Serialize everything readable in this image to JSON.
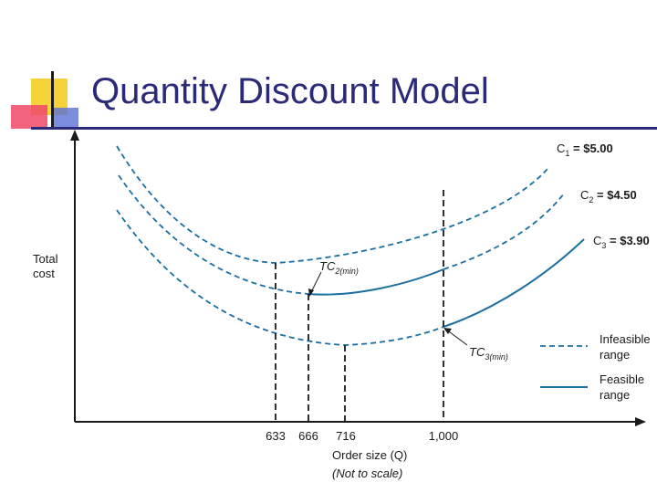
{
  "slide": {
    "title": "Quantity Discount Model"
  },
  "chart_data": {
    "type": "line",
    "title": "",
    "ylabel_lines": [
      "Total",
      "cost"
    ],
    "xlabel": "Order size (Q)",
    "xnote": "(Not to scale)",
    "x_ticks": [
      "633",
      "666",
      "716",
      "1,000"
    ],
    "series": [
      {
        "name": "C1 = $5.00",
        "label_main": "C",
        "label_sub": "1",
        "label_rest": " = $5.00",
        "segments": [
          {
            "range": "infeasible",
            "x_from": 0,
            "x_to": 1
          }
        ],
        "min_q": 633
      },
      {
        "name": "C2 = $4.50",
        "label_main": "C",
        "label_sub": "2",
        "label_rest": " = $4.50",
        "segments": [
          {
            "range": "infeasible",
            "x_from": 0,
            "x_to": 666
          },
          {
            "range": "feasible",
            "x_from": 666,
            "x_to": 1000
          },
          {
            "range": "infeasible",
            "x_from": 1000,
            "x_to": 1
          }
        ],
        "min_q": 666
      },
      {
        "name": "C3 = $3.90",
        "label_main": "C",
        "label_sub": "3",
        "label_rest": " = $3.90",
        "segments": [
          {
            "range": "infeasible",
            "x_from": 0,
            "x_to": 1000
          },
          {
            "range": "feasible",
            "x_from": 1000,
            "x_to": 1
          }
        ],
        "min_q": 716
      }
    ],
    "annotations": [
      {
        "main": "TC",
        "sub": "2(min)",
        "at_q": 666
      },
      {
        "main": "TC",
        "sub": "3(min)",
        "at_q": 1000
      }
    ],
    "legend": {
      "placement": "right",
      "items": [
        {
          "style": "dashed",
          "label_lines": [
            "Infeasible",
            "range"
          ]
        },
        {
          "style": "solid",
          "label_lines": [
            "Feasible",
            "range"
          ]
        }
      ]
    },
    "colors": {
      "curve": "#1a6fa0",
      "axis": "#1a1a1a",
      "title": "#2b2a78"
    }
  }
}
